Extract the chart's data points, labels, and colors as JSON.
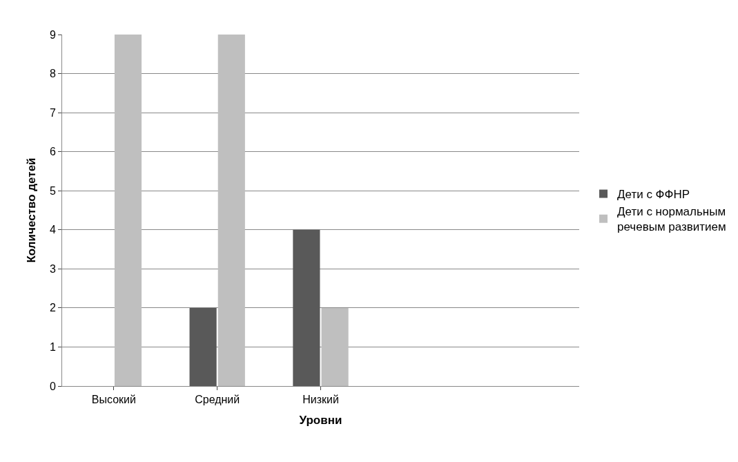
{
  "chart_data": {
    "type": "bar",
    "xlabel": "Уровни",
    "ylabel": "Количество детей",
    "categories": [
      "Высокий",
      "Средний",
      "Низкий",
      null,
      null
    ],
    "series": [
      {
        "name": "Дети с ФФНР",
        "color": "#595959",
        "values": [
          0,
          2,
          4,
          null,
          null
        ]
      },
      {
        "name": "Дети с нормальным речевым развитием",
        "color": "#bfbfbf",
        "values": [
          9,
          9,
          2,
          null,
          null
        ]
      }
    ],
    "ylim": [
      0,
      9
    ],
    "yticks": [
      0,
      1,
      2,
      3,
      4,
      5,
      6,
      7,
      8,
      9
    ],
    "grid": "y",
    "legend": "right"
  }
}
